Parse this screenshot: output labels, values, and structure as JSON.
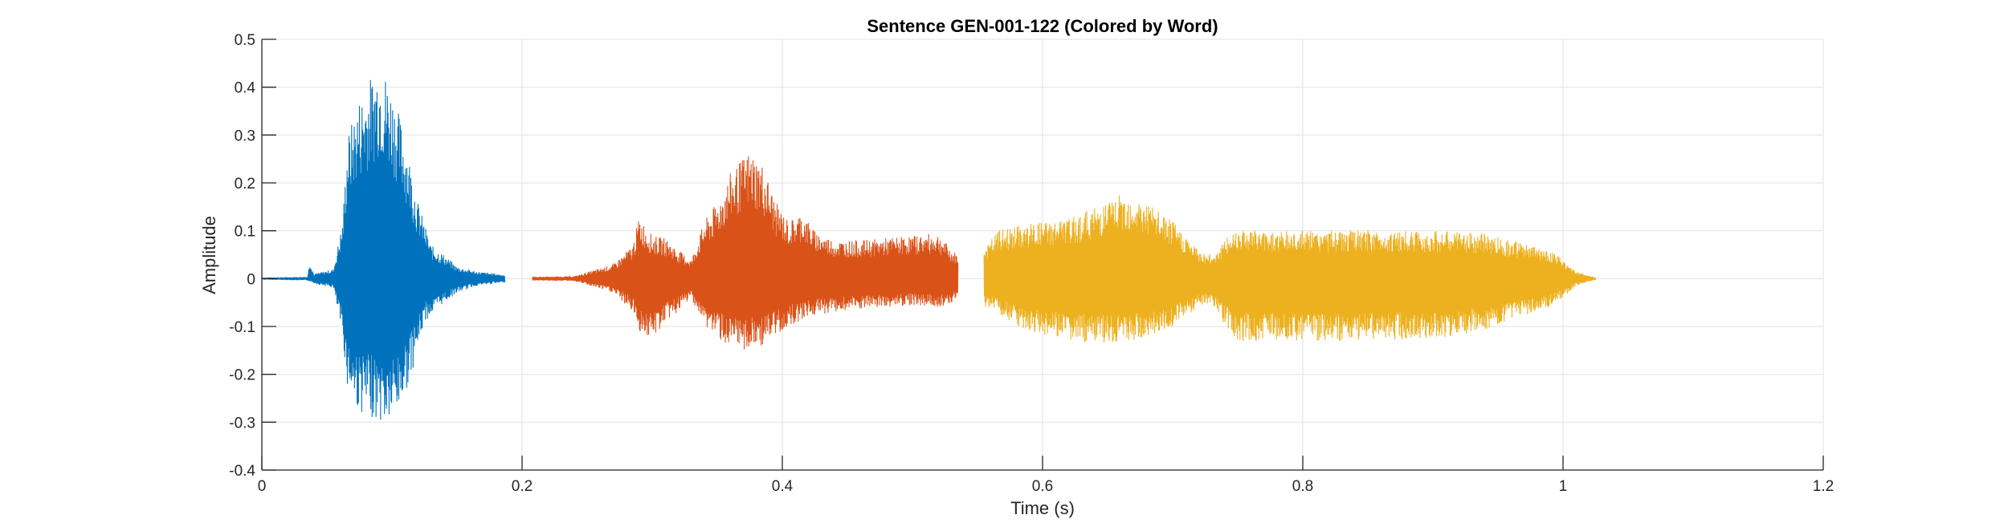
{
  "chart_data": {
    "type": "line",
    "title": "Sentence GEN-001-122 (Colored by Word)",
    "xlabel": "Time (s)",
    "ylabel": "Amplitude",
    "xlim": [
      0,
      1.2
    ],
    "ylim": [
      -0.4,
      0.5
    ],
    "xticks": [
      0,
      0.2,
      0.4,
      0.6,
      0.8,
      1,
      1.2
    ],
    "xtick_labels": [
      "0",
      "0.2",
      "0.4",
      "0.6",
      "0.8",
      "1",
      "1.2"
    ],
    "yticks": [
      -0.4,
      -0.3,
      -0.2,
      -0.1,
      0,
      0.1,
      0.2,
      0.3,
      0.4,
      0.5
    ],
    "ytick_labels": [
      "-0.4",
      "-0.3",
      "-0.2",
      "-0.1",
      "0",
      "0.1",
      "0.2",
      "0.3",
      "0.4",
      "0.5"
    ],
    "grid": true,
    "series": [
      {
        "color": "#0072BD",
        "start": 0.0,
        "end": 0.187,
        "envelope_pos": [
          [
            0.0,
            0.002
          ],
          [
            0.035,
            0.004
          ],
          [
            0.037,
            0.04
          ],
          [
            0.04,
            0.01
          ],
          [
            0.055,
            0.02
          ],
          [
            0.062,
            0.12
          ],
          [
            0.066,
            0.3
          ],
          [
            0.075,
            0.38
          ],
          [
            0.085,
            0.43
          ],
          [
            0.09,
            0.465
          ],
          [
            0.1,
            0.4
          ],
          [
            0.11,
            0.3
          ],
          [
            0.12,
            0.16
          ],
          [
            0.13,
            0.07
          ],
          [
            0.14,
            0.05
          ],
          [
            0.15,
            0.025
          ],
          [
            0.165,
            0.015
          ],
          [
            0.187,
            0.008
          ]
        ],
        "envelope_neg": [
          [
            0.0,
            -0.002
          ],
          [
            0.035,
            -0.004
          ],
          [
            0.04,
            -0.01
          ],
          [
            0.055,
            -0.02
          ],
          [
            0.062,
            -0.12
          ],
          [
            0.066,
            -0.23
          ],
          [
            0.075,
            -0.28
          ],
          [
            0.085,
            -0.29
          ],
          [
            0.095,
            -0.31
          ],
          [
            0.105,
            -0.28
          ],
          [
            0.115,
            -0.2
          ],
          [
            0.125,
            -0.09
          ],
          [
            0.14,
            -0.05
          ],
          [
            0.15,
            -0.03
          ],
          [
            0.165,
            -0.015
          ],
          [
            0.187,
            -0.008
          ]
        ]
      },
      {
        "color": "#D95319",
        "start": 0.208,
        "end": 0.535,
        "envelope_pos": [
          [
            0.208,
            0.004
          ],
          [
            0.24,
            0.005
          ],
          [
            0.27,
            0.03
          ],
          [
            0.285,
            0.07
          ],
          [
            0.29,
            0.13
          ],
          [
            0.3,
            0.09
          ],
          [
            0.31,
            0.085
          ],
          [
            0.32,
            0.06
          ],
          [
            0.33,
            0.04
          ],
          [
            0.335,
            0.08
          ],
          [
            0.34,
            0.12
          ],
          [
            0.35,
            0.16
          ],
          [
            0.36,
            0.22
          ],
          [
            0.375,
            0.27
          ],
          [
            0.385,
            0.24
          ],
          [
            0.395,
            0.16
          ],
          [
            0.405,
            0.12
          ],
          [
            0.415,
            0.14
          ],
          [
            0.425,
            0.1
          ],
          [
            0.44,
            0.08
          ],
          [
            0.46,
            0.08
          ],
          [
            0.48,
            0.085
          ],
          [
            0.5,
            0.09
          ],
          [
            0.52,
            0.095
          ],
          [
            0.53,
            0.06
          ],
          [
            0.535,
            0.05
          ]
        ],
        "envelope_neg": [
          [
            0.208,
            -0.004
          ],
          [
            0.24,
            -0.005
          ],
          [
            0.27,
            -0.03
          ],
          [
            0.285,
            -0.07
          ],
          [
            0.29,
            -0.11
          ],
          [
            0.3,
            -0.13
          ],
          [
            0.31,
            -0.09
          ],
          [
            0.32,
            -0.07
          ],
          [
            0.33,
            -0.04
          ],
          [
            0.335,
            -0.07
          ],
          [
            0.34,
            -0.1
          ],
          [
            0.35,
            -0.12
          ],
          [
            0.36,
            -0.15
          ],
          [
            0.375,
            -0.15
          ],
          [
            0.385,
            -0.14
          ],
          [
            0.395,
            -0.12
          ],
          [
            0.405,
            -0.1
          ],
          [
            0.42,
            -0.08
          ],
          [
            0.44,
            -0.07
          ],
          [
            0.46,
            -0.065
          ],
          [
            0.48,
            -0.06
          ],
          [
            0.5,
            -0.055
          ],
          [
            0.52,
            -0.06
          ],
          [
            0.53,
            -0.05
          ],
          [
            0.535,
            -0.04
          ]
        ]
      },
      {
        "color": "#EDB120",
        "start": 0.555,
        "end": 1.025,
        "envelope_pos": [
          [
            0.555,
            0.06
          ],
          [
            0.565,
            0.1
          ],
          [
            0.58,
            0.11
          ],
          [
            0.6,
            0.12
          ],
          [
            0.62,
            0.125
          ],
          [
            0.64,
            0.15
          ],
          [
            0.655,
            0.17
          ],
          [
            0.665,
            0.18
          ],
          [
            0.68,
            0.16
          ],
          [
            0.7,
            0.12
          ],
          [
            0.72,
            0.06
          ],
          [
            0.73,
            0.05
          ],
          [
            0.74,
            0.08
          ],
          [
            0.75,
            0.11
          ],
          [
            0.77,
            0.1
          ],
          [
            0.8,
            0.1
          ],
          [
            0.85,
            0.1
          ],
          [
            0.9,
            0.1
          ],
          [
            0.94,
            0.095
          ],
          [
            0.96,
            0.08
          ],
          [
            0.99,
            0.06
          ],
          [
            1.0,
            0.04
          ],
          [
            1.01,
            0.015
          ],
          [
            1.025,
            0.003
          ]
        ],
        "envelope_neg": [
          [
            0.555,
            -0.06
          ],
          [
            0.565,
            -0.07
          ],
          [
            0.58,
            -0.1
          ],
          [
            0.6,
            -0.12
          ],
          [
            0.62,
            -0.13
          ],
          [
            0.64,
            -0.135
          ],
          [
            0.655,
            -0.14
          ],
          [
            0.665,
            -0.13
          ],
          [
            0.68,
            -0.13
          ],
          [
            0.7,
            -0.1
          ],
          [
            0.72,
            -0.06
          ],
          [
            0.73,
            -0.05
          ],
          [
            0.74,
            -0.1
          ],
          [
            0.75,
            -0.13
          ],
          [
            0.77,
            -0.13
          ],
          [
            0.8,
            -0.13
          ],
          [
            0.85,
            -0.13
          ],
          [
            0.9,
            -0.125
          ],
          [
            0.94,
            -0.11
          ],
          [
            0.96,
            -0.09
          ],
          [
            0.99,
            -0.06
          ],
          [
            1.0,
            -0.04
          ],
          [
            1.01,
            -0.015
          ],
          [
            1.025,
            -0.003
          ]
        ]
      }
    ]
  }
}
